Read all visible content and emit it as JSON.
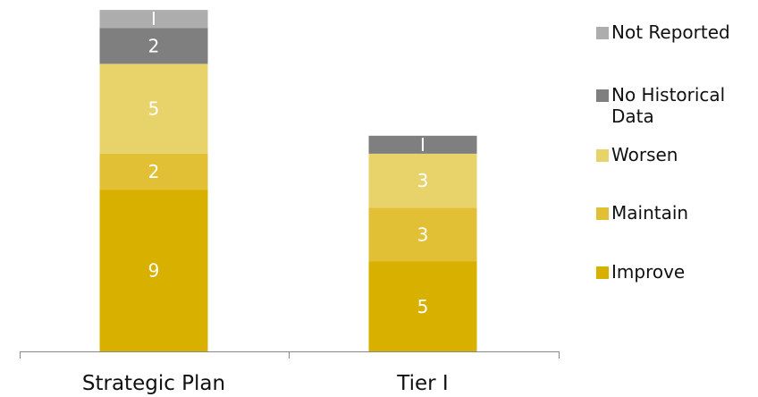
{
  "chart_data": {
    "type": "bar",
    "stacked": true,
    "categories": [
      "Strategic Plan",
      "Tier 1"
    ],
    "category_labels": [
      "Strategic Plan",
      "Tier I"
    ],
    "ylim": [
      0,
      19
    ],
    "grid": false,
    "legend_position": "right",
    "series": [
      {
        "name": "Improve",
        "color": "#D7B000",
        "values": [
          9,
          5
        ],
        "labels": [
          "9",
          "5"
        ]
      },
      {
        "name": "Maintain",
        "color": "#E2C035",
        "values": [
          2,
          3
        ],
        "labels": [
          "2",
          "3"
        ]
      },
      {
        "name": "Worsen",
        "color": "#E8D26A",
        "values": [
          5,
          3
        ],
        "labels": [
          "5",
          "3"
        ]
      },
      {
        "name": "No Historical Data",
        "color": "#7F7F7F",
        "values": [
          2,
          1
        ],
        "labels": [
          "2",
          "I"
        ]
      },
      {
        "name": "Not Reported",
        "color": "#ADADAD",
        "values": [
          1,
          0
        ],
        "labels": [
          "I",
          ""
        ]
      }
    ],
    "legend_order": [
      "Not Reported",
      "No Historical Data",
      "Worsen",
      "Maintain",
      "Improve"
    ]
  }
}
